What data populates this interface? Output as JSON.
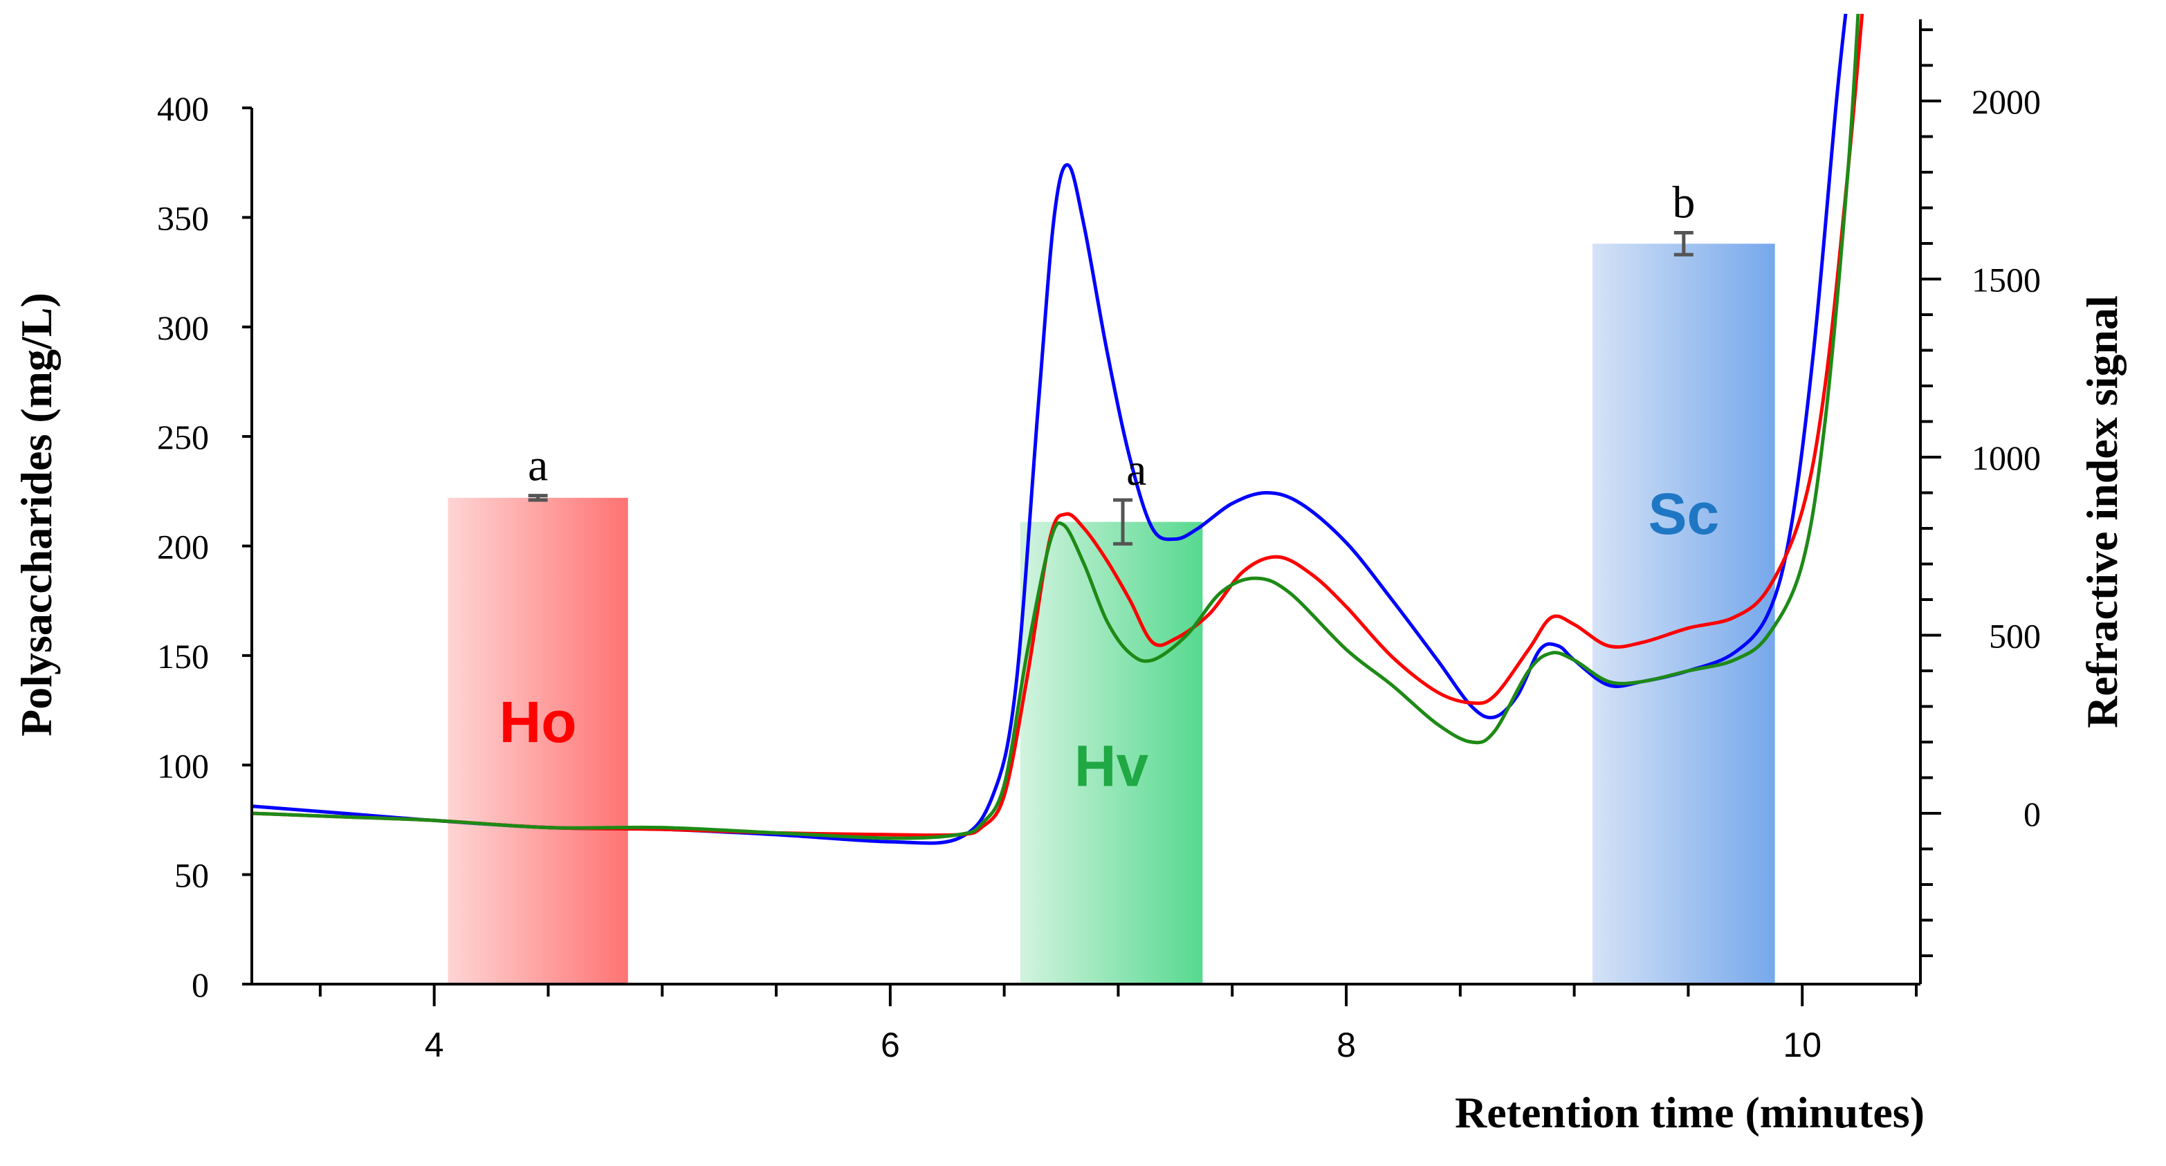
{
  "chart_data": {
    "type": "bar+line",
    "xlabel": "Retention time (minutes)",
    "ylabel_left": "Polysaccharides (mg/L)",
    "ylabel_right": "Refractive index signal",
    "x_range": [
      3.2,
      10.5
    ],
    "x_ticks": [
      4,
      6,
      8,
      10
    ],
    "y_left_range": [
      0,
      420
    ],
    "y_left_ticks": [
      0,
      50,
      100,
      150,
      200,
      250,
      300,
      350,
      400
    ],
    "y_right_range": [
      -480,
      2260
    ],
    "y_right_ticks": [
      0,
      500,
      1000,
      1500,
      2000
    ],
    "bars": [
      {
        "label": "Ho",
        "x0": 4.06,
        "x1": 4.85,
        "value": 222,
        "error": 1,
        "letter": "a",
        "color_light": "#ffd4d4",
        "color_dark": "#ff7373",
        "label_color": "#ff0000",
        "label_y": 120
      },
      {
        "label": "Hv",
        "x0": 6.57,
        "x1": 7.37,
        "value": 211,
        "error": 10,
        "letter": "a",
        "color_light": "#d2f3df",
        "color_dark": "#56d98f",
        "label_color": "#1fa843",
        "label_y": 100
      },
      {
        "label": "Sc",
        "x0": 9.08,
        "x1": 9.88,
        "value": 338,
        "error": 5,
        "letter": "b",
        "color_light": "#d4e2f6",
        "color_dark": "#76a8eb",
        "label_color": "#1f77c4",
        "label_y": 215
      }
    ],
    "series": [
      {
        "name": "blue trace",
        "color": "#0000ff",
        "axis": "right",
        "points": [
          [
            3.2,
            20
          ],
          [
            3.6,
            0
          ],
          [
            4.0,
            -20
          ],
          [
            4.5,
            -40
          ],
          [
            5.0,
            -45
          ],
          [
            5.5,
            -60
          ],
          [
            6.0,
            -80
          ],
          [
            6.3,
            -70
          ],
          [
            6.45,
            50
          ],
          [
            6.55,
            350
          ],
          [
            6.65,
            1150
          ],
          [
            6.72,
            1680
          ],
          [
            6.78,
            1820
          ],
          [
            6.85,
            1650
          ],
          [
            6.95,
            1300
          ],
          [
            7.05,
            1000
          ],
          [
            7.15,
            800
          ],
          [
            7.25,
            770
          ],
          [
            7.35,
            800
          ],
          [
            7.5,
            870
          ],
          [
            7.65,
            900
          ],
          [
            7.8,
            870
          ],
          [
            8.0,
            760
          ],
          [
            8.2,
            600
          ],
          [
            8.4,
            430
          ],
          [
            8.55,
            300
          ],
          [
            8.65,
            270
          ],
          [
            8.75,
            330
          ],
          [
            8.85,
            460
          ],
          [
            8.93,
            470
          ],
          [
            9.0,
            430
          ],
          [
            9.15,
            360
          ],
          [
            9.3,
            370
          ],
          [
            9.5,
            400
          ],
          [
            9.7,
            450
          ],
          [
            9.85,
            560
          ],
          [
            9.95,
            800
          ],
          [
            10.05,
            1300
          ],
          [
            10.15,
            2000
          ],
          [
            10.2,
            2300
          ]
        ]
      },
      {
        "name": "red trace",
        "color": "#ff0000",
        "axis": "right",
        "points": [
          [
            3.2,
            0
          ],
          [
            3.6,
            -10
          ],
          [
            4.0,
            -20
          ],
          [
            4.5,
            -40
          ],
          [
            5.0,
            -45
          ],
          [
            5.5,
            -55
          ],
          [
            6.0,
            -60
          ],
          [
            6.3,
            -60
          ],
          [
            6.4,
            -40
          ],
          [
            6.5,
            50
          ],
          [
            6.6,
            380
          ],
          [
            6.7,
            770
          ],
          [
            6.77,
            840
          ],
          [
            6.85,
            800
          ],
          [
            6.95,
            710
          ],
          [
            7.05,
            600
          ],
          [
            7.15,
            480
          ],
          [
            7.25,
            490
          ],
          [
            7.4,
            560
          ],
          [
            7.55,
            680
          ],
          [
            7.7,
            720
          ],
          [
            7.85,
            670
          ],
          [
            8.0,
            580
          ],
          [
            8.2,
            440
          ],
          [
            8.4,
            340
          ],
          [
            8.55,
            310
          ],
          [
            8.65,
            330
          ],
          [
            8.8,
            460
          ],
          [
            8.9,
            550
          ],
          [
            9.0,
            530
          ],
          [
            9.15,
            470
          ],
          [
            9.3,
            480
          ],
          [
            9.5,
            520
          ],
          [
            9.7,
            550
          ],
          [
            9.85,
            630
          ],
          [
            10.0,
            850
          ],
          [
            10.1,
            1200
          ],
          [
            10.2,
            1800
          ],
          [
            10.27,
            2300
          ]
        ]
      },
      {
        "name": "green trace",
        "color": "#1e8a16",
        "axis": "right",
        "points": [
          [
            3.2,
            0
          ],
          [
            3.6,
            -10
          ],
          [
            4.0,
            -20
          ],
          [
            4.5,
            -40
          ],
          [
            5.0,
            -40
          ],
          [
            5.5,
            -55
          ],
          [
            6.0,
            -70
          ],
          [
            6.3,
            -60
          ],
          [
            6.4,
            -30
          ],
          [
            6.5,
            80
          ],
          [
            6.6,
            450
          ],
          [
            6.7,
            760
          ],
          [
            6.76,
            810
          ],
          [
            6.85,
            700
          ],
          [
            6.95,
            540
          ],
          [
            7.05,
            450
          ],
          [
            7.15,
            430
          ],
          [
            7.3,
            500
          ],
          [
            7.45,
            620
          ],
          [
            7.6,
            660
          ],
          [
            7.75,
            620
          ],
          [
            8.0,
            460
          ],
          [
            8.2,
            360
          ],
          [
            8.4,
            250
          ],
          [
            8.55,
            200
          ],
          [
            8.65,
            230
          ],
          [
            8.8,
            400
          ],
          [
            8.9,
            450
          ],
          [
            9.0,
            430
          ],
          [
            9.15,
            370
          ],
          [
            9.3,
            370
          ],
          [
            9.5,
            400
          ],
          [
            9.7,
            430
          ],
          [
            9.85,
            500
          ],
          [
            10.0,
            700
          ],
          [
            10.1,
            1100
          ],
          [
            10.2,
            1800
          ],
          [
            10.25,
            2300
          ]
        ]
      }
    ]
  }
}
